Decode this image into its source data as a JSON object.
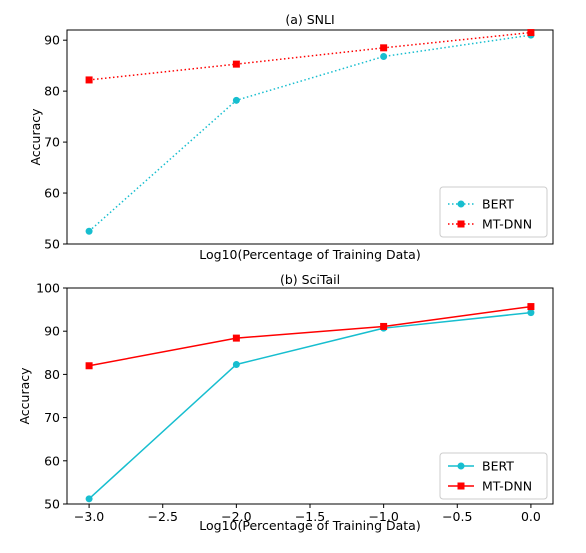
{
  "chart_data": [
    {
      "type": "line",
      "title": "(a) SNLI",
      "xlabel": "Log10(Percentage of Training Data)",
      "ylabel": "Accuracy",
      "x": [
        -3.0,
        -2.0,
        -1.0,
        0.0
      ],
      "xlim": [
        -3.15,
        0.15
      ],
      "ylim": [
        50,
        92
      ],
      "yticks": [
        50,
        60,
        70,
        80,
        90
      ],
      "xticks": [],
      "line_style": "dotted",
      "grid": false,
      "legend_position": "lower-right",
      "series": [
        {
          "name": "BERT",
          "color": "#17becf",
          "marker": "circle",
          "values": [
            52.5,
            78.2,
            86.8,
            91.0
          ]
        },
        {
          "name": "MT-DNN",
          "color": "#ff0000",
          "marker": "square",
          "values": [
            82.2,
            85.3,
            88.5,
            91.5
          ]
        }
      ]
    },
    {
      "type": "line",
      "title": "(b) SciTail",
      "xlabel": "Log10(Percentage of Training Data)",
      "ylabel": "Accuracy",
      "x": [
        -3.0,
        -2.0,
        -1.0,
        0.0
      ],
      "xlim": [
        -3.15,
        0.15
      ],
      "ylim": [
        50,
        100
      ],
      "yticks": [
        50,
        60,
        70,
        80,
        90,
        100
      ],
      "xticks": [
        -3.0,
        -2.5,
        -2.0,
        -1.5,
        -1.0,
        -0.5,
        0.0
      ],
      "xtick_labels": [
        "−3.0",
        "−2.5",
        "−2.0",
        "−1.5",
        "−1.0",
        "−0.5",
        "0.0"
      ],
      "line_style": "solid",
      "grid": false,
      "legend_position": "lower-right",
      "series": [
        {
          "name": "BERT",
          "color": "#17becf",
          "marker": "circle",
          "values": [
            51.2,
            82.3,
            90.7,
            94.3
          ]
        },
        {
          "name": "MT-DNN",
          "color": "#ff0000",
          "marker": "square",
          "values": [
            82.0,
            88.4,
            91.1,
            95.7
          ]
        }
      ]
    }
  ]
}
